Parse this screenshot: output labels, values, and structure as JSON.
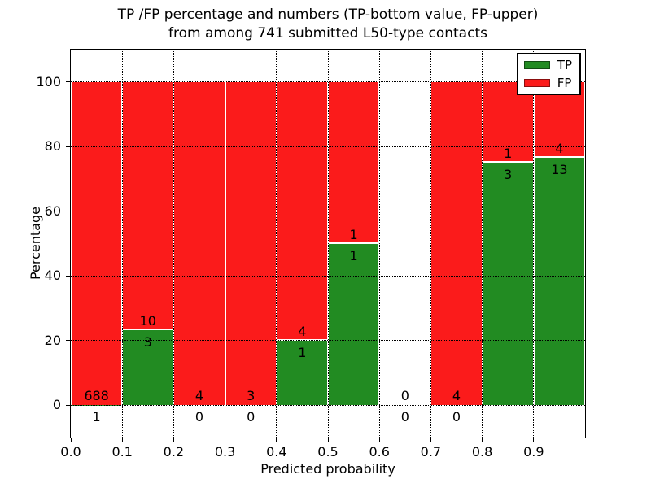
{
  "chart_data": {
    "type": "bar",
    "stacked": true,
    "title_lines": [
      "TP /FP percentage and numbers (TP-bottom value, FP-upper)",
      "from among 741 submitted L50-type contacts"
    ],
    "xlabel": "Predicted probability",
    "ylabel": "Percentage",
    "xlim": [
      0.0,
      1.0
    ],
    "ylim": [
      -10,
      110
    ],
    "x_ticks": [
      "0.0",
      "0.1",
      "0.2",
      "0.3",
      "0.4",
      "0.5",
      "0.6",
      "0.7",
      "0.8",
      "0.9"
    ],
    "y_ticks": [
      0,
      20,
      40,
      60,
      80,
      100
    ],
    "grid": true,
    "colors": {
      "tp": "#228b22",
      "fp": "#fb1b1b",
      "grid": "#000000",
      "background": "#ffffff"
    },
    "legend": {
      "position": "upper-right",
      "entries": [
        {
          "label": "TP",
          "color": "#228b22"
        },
        {
          "label": "FP",
          "color": "#fb1b1b"
        }
      ]
    },
    "bins": [
      {
        "range": [
          0.0,
          0.1
        ],
        "tp": 1,
        "fp": 688,
        "tp_pct": 0.15
      },
      {
        "range": [
          0.1,
          0.2
        ],
        "tp": 3,
        "fp": 10,
        "tp_pct": 23.1
      },
      {
        "range": [
          0.2,
          0.3
        ],
        "tp": 0,
        "fp": 4,
        "tp_pct": 0
      },
      {
        "range": [
          0.3,
          0.4
        ],
        "tp": 0,
        "fp": 3,
        "tp_pct": 0
      },
      {
        "range": [
          0.4,
          0.5
        ],
        "tp": 1,
        "fp": 4,
        "tp_pct": 20
      },
      {
        "range": [
          0.5,
          0.6
        ],
        "tp": 1,
        "fp": 1,
        "tp_pct": 50
      },
      {
        "range": [
          0.6,
          0.7
        ],
        "tp": 0,
        "fp": 0,
        "tp_pct": null
      },
      {
        "range": [
          0.7,
          0.8
        ],
        "tp": 0,
        "fp": 4,
        "tp_pct": 0
      },
      {
        "range": [
          0.8,
          0.9
        ],
        "tp": 3,
        "fp": 1,
        "tp_pct": 75
      },
      {
        "range": [
          0.9,
          1.0
        ],
        "tp": 13,
        "fp": 4,
        "tp_pct": 76.5
      }
    ]
  }
}
